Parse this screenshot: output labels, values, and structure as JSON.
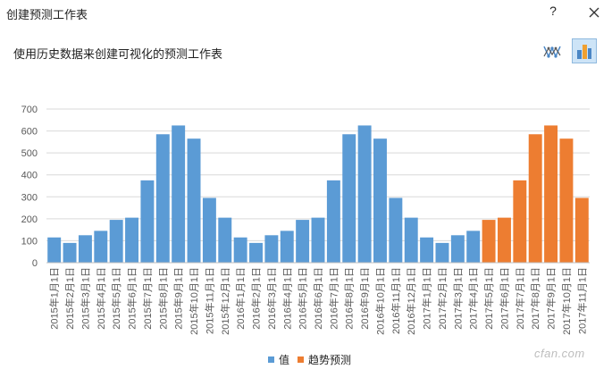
{
  "window": {
    "title": "创建预测工作表",
    "help_label": "?"
  },
  "header": {
    "subtitle": "使用历史数据来创建可视化的预测工作表"
  },
  "toolbar": {
    "line_view_icon": "line-chart-icon",
    "column_view_icon": "column-chart-icon",
    "selected": "column"
  },
  "colors": {
    "actual": "#5b9bd5",
    "forecast": "#ed7d31",
    "axis": "#d9d9d9",
    "text": "#595959"
  },
  "chart_data": {
    "type": "bar",
    "categories": [
      "2015年1月1日",
      "2015年2月1日",
      "2015年3月1日",
      "2015年4月1日",
      "2015年5月1日",
      "2015年6月1日",
      "2015年7月1日",
      "2015年8月1日",
      "2015年9月1日",
      "2015年10月1日",
      "2015年11月1日",
      "2015年12月1日",
      "2016年1月1日",
      "2016年2月1日",
      "2016年3月1日",
      "2016年4月1日",
      "2016年5月1日",
      "2016年6月1日",
      "2016年7月1日",
      "2016年8月1日",
      "2016年9月1日",
      "2016年10月1日",
      "2016年11月1日",
      "2016年12月1日",
      "2017年1月1日",
      "2017年2月1日",
      "2017年3月1日",
      "2017年4月1日",
      "2017年5月1日",
      "2017年6月1日",
      "2017年7月1日",
      "2017年8月1日",
      "2017年9月1日",
      "2017年10月1日",
      "2017年11月1日"
    ],
    "series": [
      {
        "name": "值",
        "color": "#5b9bd5",
        "values": [
          115,
          90,
          125,
          145,
          195,
          205,
          375,
          585,
          625,
          565,
          295,
          205,
          115,
          90,
          125,
          145,
          195,
          205,
          375,
          585,
          625,
          565,
          295,
          205,
          115,
          90,
          125,
          145,
          null,
          null,
          null,
          null,
          null,
          null,
          null
        ]
      },
      {
        "name": "趋势预测",
        "color": "#ed7d31",
        "values": [
          null,
          null,
          null,
          null,
          null,
          null,
          null,
          null,
          null,
          null,
          null,
          null,
          null,
          null,
          null,
          null,
          null,
          null,
          null,
          null,
          null,
          null,
          null,
          null,
          null,
          null,
          null,
          null,
          195,
          205,
          375,
          585,
          625,
          565,
          295
        ]
      }
    ],
    "y_ticks": [
      0,
      100,
      200,
      300,
      400,
      500,
      600,
      700
    ],
    "ylim": [
      0,
      700
    ],
    "grid": true,
    "legend": "bottom"
  },
  "watermark": "cfan.com"
}
